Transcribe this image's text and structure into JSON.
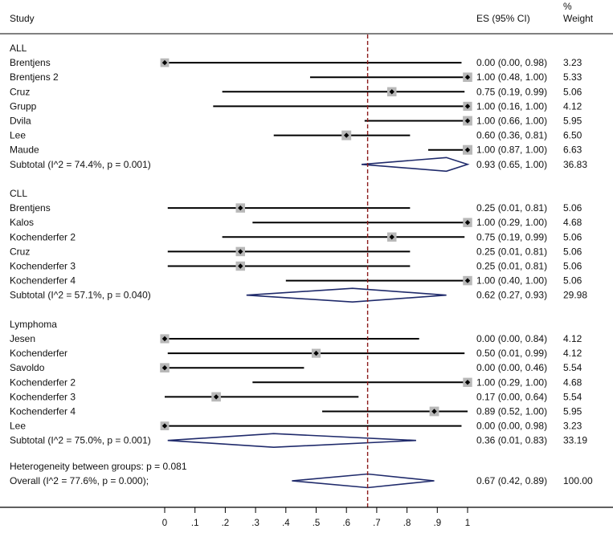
{
  "chart_data": {
    "type": "forest",
    "headers": {
      "study": "Study",
      "es": "ES (95% CI)",
      "weight_line1": "%",
      "weight_line2": "Weight"
    },
    "x_ticks": [
      {
        "value": 0,
        "label": "0"
      },
      {
        "value": 0.1,
        "label": ".1"
      },
      {
        "value": 0.2,
        "label": ".2"
      },
      {
        "value": 0.3,
        "label": ".3"
      },
      {
        "value": 0.4,
        "label": ".4"
      },
      {
        "value": 0.5,
        "label": ".5"
      },
      {
        "value": 0.6,
        "label": ".6"
      },
      {
        "value": 0.7,
        "label": ".7"
      },
      {
        "value": 0.8,
        "label": ".8"
      },
      {
        "value": 0.9,
        "label": ".9"
      },
      {
        "value": 1,
        "label": "1"
      }
    ],
    "xlim": [
      0,
      1
    ],
    "reference_line": {
      "value": 0.67,
      "style": "dashed",
      "color": "#8b1a1a"
    },
    "groups": [
      {
        "name": "ALL",
        "studies": [
          {
            "label": "Brentjens",
            "es": 0.0,
            "lo": 0.0,
            "hi": 0.98,
            "weight": 3.23,
            "ci_text": "0.00 (0.00, 0.98)",
            "weight_text": "3.23"
          },
          {
            "label": "Brentjens 2",
            "es": 1.0,
            "lo": 0.48,
            "hi": 1.0,
            "weight": 5.33,
            "ci_text": "1.00 (0.48, 1.00)",
            "weight_text": "5.33"
          },
          {
            "label": "Cruz",
            "es": 0.75,
            "lo": 0.19,
            "hi": 0.99,
            "weight": 5.06,
            "ci_text": "0.75 (0.19, 0.99)",
            "weight_text": "5.06"
          },
          {
            "label": "Grupp",
            "es": 1.0,
            "lo": 0.16,
            "hi": 1.0,
            "weight": 4.12,
            "ci_text": "1.00 (0.16, 1.00)",
            "weight_text": "4.12"
          },
          {
            "label": "Dvila",
            "es": 1.0,
            "lo": 0.66,
            "hi": 1.0,
            "weight": 5.95,
            "ci_text": "1.00 (0.66, 1.00)",
            "weight_text": "5.95"
          },
          {
            "label": "Lee",
            "es": 0.6,
            "lo": 0.36,
            "hi": 0.81,
            "weight": 6.5,
            "ci_text": "0.60 (0.36, 0.81)",
            "weight_text": "6.50"
          },
          {
            "label": "Maude",
            "es": 1.0,
            "lo": 0.87,
            "hi": 1.0,
            "weight": 6.63,
            "ci_text": "1.00 (0.87, 1.00)",
            "weight_text": "6.63"
          }
        ],
        "subtotal": {
          "label": "Subtotal  (I^2 = 74.4%, p = 0.001)",
          "es": 0.93,
          "lo": 0.65,
          "hi": 1.0,
          "ci_text": "0.93 (0.65, 1.00)",
          "weight_text": "36.83"
        }
      },
      {
        "name": "CLL",
        "studies": [
          {
            "label": "Brentjens",
            "es": 0.25,
            "lo": 0.01,
            "hi": 0.81,
            "weight": 5.06,
            "ci_text": "0.25 (0.01, 0.81)",
            "weight_text": "5.06"
          },
          {
            "label": "Kalos",
            "es": 1.0,
            "lo": 0.29,
            "hi": 1.0,
            "weight": 4.68,
            "ci_text": "1.00 (0.29, 1.00)",
            "weight_text": "4.68"
          },
          {
            "label": "Kochenderfer 2",
            "es": 0.75,
            "lo": 0.19,
            "hi": 0.99,
            "weight": 5.06,
            "ci_text": "0.75 (0.19, 0.99)",
            "weight_text": "5.06"
          },
          {
            "label": "Cruz",
            "es": 0.25,
            "lo": 0.01,
            "hi": 0.81,
            "weight": 5.06,
            "ci_text": "0.25 (0.01, 0.81)",
            "weight_text": "5.06"
          },
          {
            "label": "Kochenderfer 3",
            "es": 0.25,
            "lo": 0.01,
            "hi": 0.81,
            "weight": 5.06,
            "ci_text": "0.25 (0.01, 0.81)",
            "weight_text": "5.06"
          },
          {
            "label": "Kochenderfer 4",
            "es": 1.0,
            "lo": 0.4,
            "hi": 1.0,
            "weight": 5.06,
            "ci_text": "1.00 (0.40, 1.00)",
            "weight_text": "5.06"
          }
        ],
        "subtotal": {
          "label": "Subtotal  (I^2 = 57.1%, p = 0.040)",
          "es": 0.62,
          "lo": 0.27,
          "hi": 0.93,
          "ci_text": "0.62 (0.27, 0.93)",
          "weight_text": "29.98"
        }
      },
      {
        "name": "Lymphoma",
        "studies": [
          {
            "label": "Jesen",
            "es": 0.0,
            "lo": 0.0,
            "hi": 0.84,
            "weight": 4.12,
            "ci_text": "0.00 (0.00, 0.84)",
            "weight_text": "4.12"
          },
          {
            "label": "Kochenderfer",
            "es": 0.5,
            "lo": 0.01,
            "hi": 0.99,
            "weight": 4.12,
            "ci_text": "0.50 (0.01, 0.99)",
            "weight_text": "4.12"
          },
          {
            "label": "Savoldo",
            "es": 0.0,
            "lo": 0.0,
            "hi": 0.46,
            "weight": 5.54,
            "ci_text": "0.00 (0.00, 0.46)",
            "weight_text": "5.54"
          },
          {
            "label": "Kochenderfer 2",
            "es": 1.0,
            "lo": 0.29,
            "hi": 1.0,
            "weight": 4.68,
            "ci_text": "1.00 (0.29, 1.00)",
            "weight_text": "4.68"
          },
          {
            "label": "Kochenderfer 3",
            "es": 0.17,
            "lo": 0.0,
            "hi": 0.64,
            "weight": 5.54,
            "ci_text": "0.17 (0.00, 0.64)",
            "weight_text": "5.54"
          },
          {
            "label": "Kochenderfer 4",
            "es": 0.89,
            "lo": 0.52,
            "hi": 1.0,
            "weight": 5.95,
            "ci_text": "0.89 (0.52, 1.00)",
            "weight_text": "5.95"
          },
          {
            "label": "Lee",
            "es": 0.0,
            "lo": 0.0,
            "hi": 0.98,
            "weight": 3.23,
            "ci_text": "0.00 (0.00, 0.98)",
            "weight_text": "3.23"
          }
        ],
        "subtotal": {
          "label": "Subtotal  (I^2 = 75.0%, p = 0.001)",
          "es": 0.36,
          "lo": 0.01,
          "hi": 0.83,
          "ci_text": "0.36 (0.01, 0.83)",
          "weight_text": "33.19"
        }
      }
    ],
    "heterogeneity": "Heterogeneity between groups: p = 0.081",
    "overall": {
      "label": "Overall  (I^2 = 77.6%, p = 0.000);",
      "es": 0.67,
      "lo": 0.42,
      "hi": 0.89,
      "ci_text": "0.67 (0.42, 0.89)",
      "weight_text": "100.00"
    },
    "colors": {
      "diamond": "#1f2a6b",
      "marker_box": "#b8b8b8",
      "ci_line": "#000000",
      "axis": "#000000"
    }
  }
}
